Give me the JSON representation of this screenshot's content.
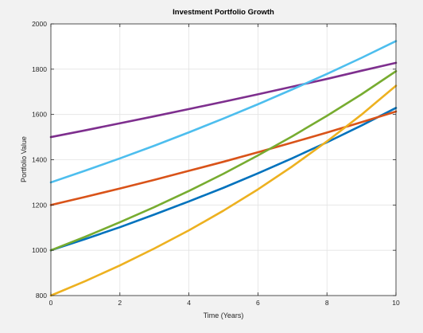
{
  "colors": {
    "figure_background": "#f2f2f2",
    "axes_background": "#ffffff",
    "axis_line": "#262626",
    "grid_line": "#e3e3e3"
  },
  "chart_data": {
    "type": "line",
    "title": "Investment Portfolio Growth",
    "xlabel": "Time (Years)",
    "ylabel": "Portfolio Value",
    "xlim": [
      0,
      10
    ],
    "ylim": [
      800,
      2000
    ],
    "xticks": [
      0,
      2,
      4,
      6,
      8,
      10
    ],
    "yticks": [
      800,
      1000,
      1200,
      1400,
      1600,
      1800,
      2000
    ],
    "grid": true,
    "legend": "none",
    "x": [
      0,
      1,
      2,
      3,
      4,
      5,
      6,
      7,
      8,
      9,
      10
    ],
    "series": [
      {
        "color": "#0072bd",
        "values": [
          1000,
          1050,
          1102,
          1158,
          1216,
          1276,
          1340,
          1407,
          1477,
          1551,
          1629
        ]
      },
      {
        "color": "#d95319",
        "values": [
          1200,
          1236,
          1273,
          1311,
          1351,
          1391,
          1433,
          1476,
          1520,
          1566,
          1613
        ]
      },
      {
        "color": "#edb120",
        "values": [
          800,
          864,
          933,
          1008,
          1088,
          1175,
          1269,
          1371,
          1481,
          1599,
          1727
        ]
      },
      {
        "color": "#7e2f8e",
        "values": [
          1500,
          1530,
          1561,
          1592,
          1624,
          1656,
          1689,
          1723,
          1757,
          1793,
          1828
        ]
      },
      {
        "color": "#77ac30",
        "values": [
          1000,
          1060,
          1124,
          1191,
          1262,
          1338,
          1419,
          1504,
          1594,
          1689,
          1791
        ]
      },
      {
        "color": "#4dbeee",
        "values": [
          1300,
          1352,
          1406,
          1462,
          1521,
          1582,
          1645,
          1711,
          1779,
          1850,
          1924
        ]
      }
    ]
  }
}
